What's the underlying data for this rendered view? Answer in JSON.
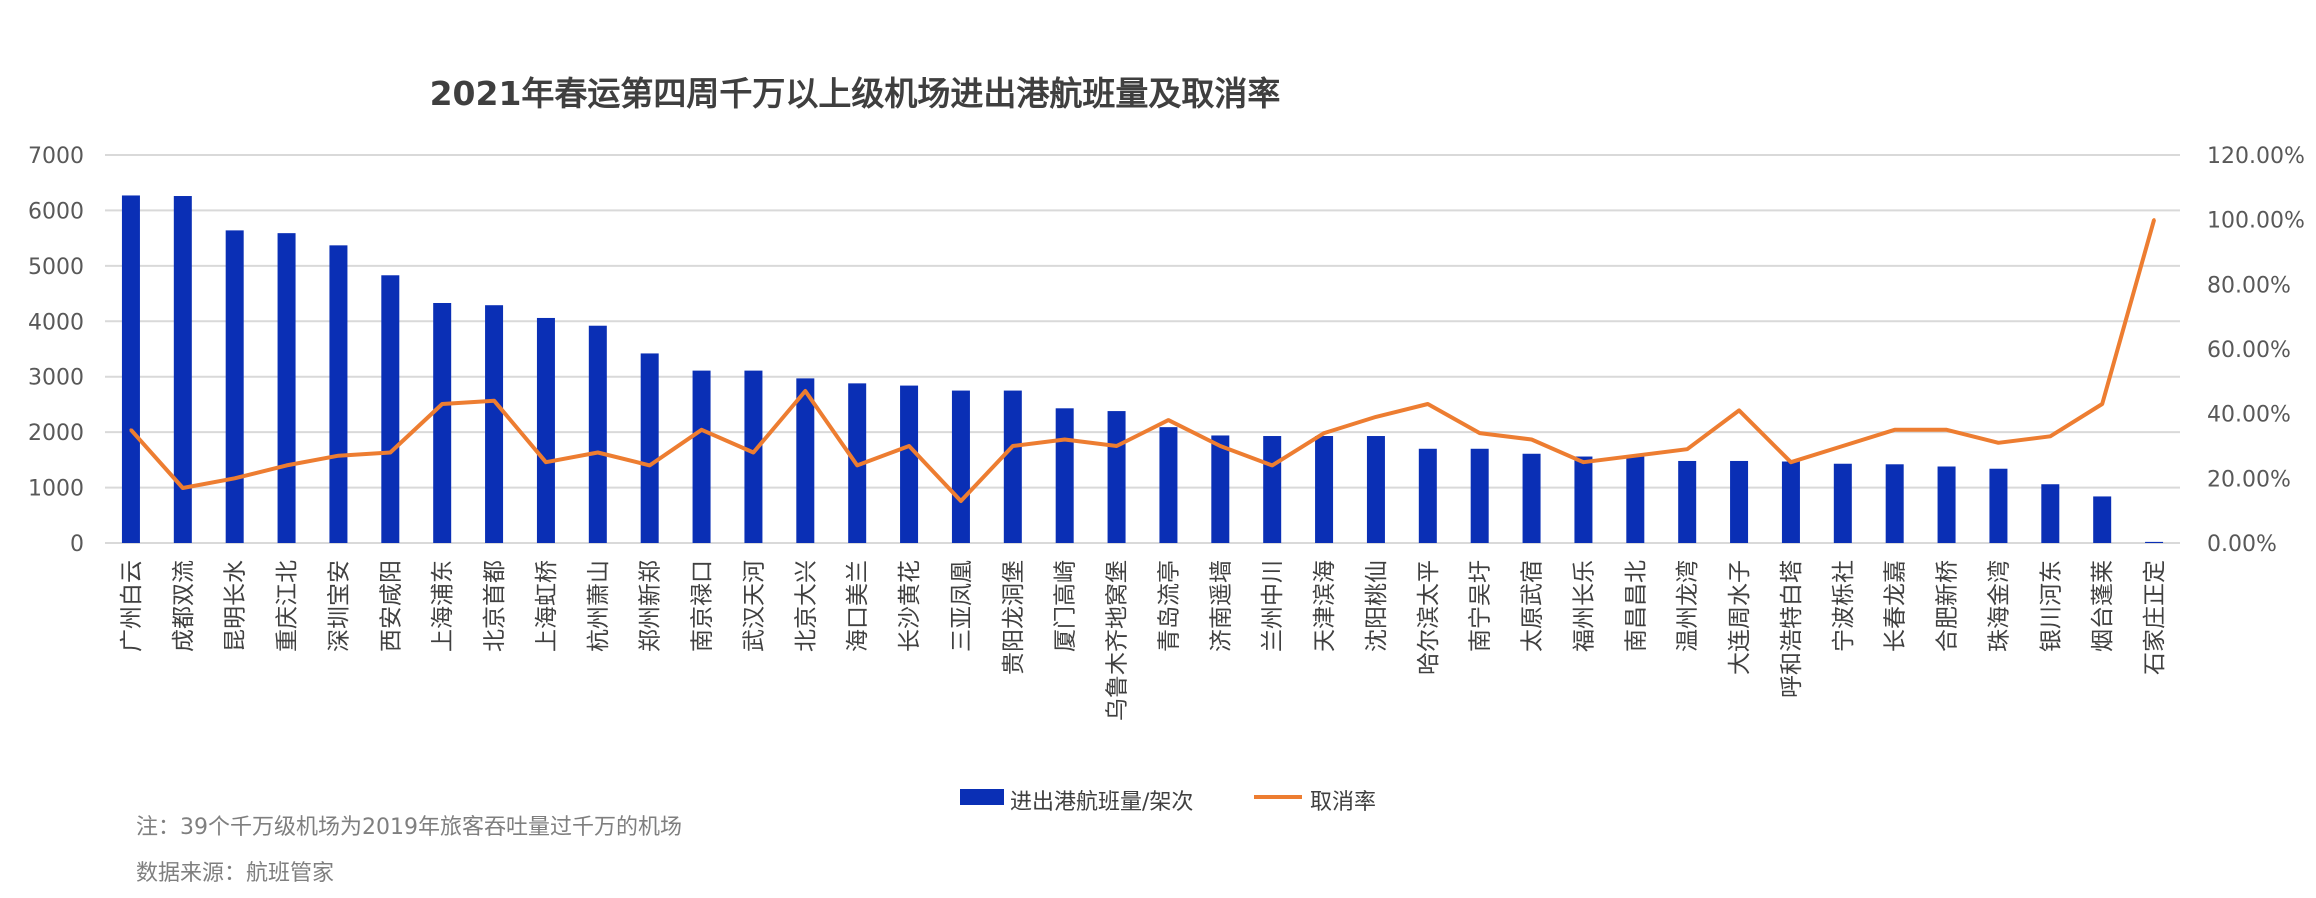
{
  "chart_data": {
    "type": "bar",
    "title": "2021年春运第四周千万以上级机场进出港航班量及取消率",
    "categories": [
      "广州白云",
      "成都双流",
      "昆明长水",
      "重庆江北",
      "深圳宝安",
      "西安咸阳",
      "上海浦东",
      "北京首都",
      "上海虹桥",
      "杭州萧山",
      "郑州新郑",
      "南京禄口",
      "武汉天河",
      "北京大兴",
      "海口美兰",
      "长沙黄花",
      "三亚凤凰",
      "贵阳龙洞堡",
      "厦门高崎",
      "乌鲁木齐地窝堡",
      "青岛流亭",
      "济南遥墙",
      "兰州中川",
      "天津滨海",
      "沈阳桃仙",
      "哈尔滨太平",
      "南宁吴圩",
      "太原武宿",
      "福州长乐",
      "南昌昌北",
      "温州龙湾",
      "大连周水子",
      "呼和浩特白塔",
      "宁波栎社",
      "长春龙嘉",
      "合肥新桥",
      "珠海金湾",
      "银川河东",
      "烟台蓬莱",
      "石家庄正定"
    ],
    "series": [
      {
        "name": "进出港航班量/架次",
        "axis": "left",
        "kind": "bar",
        "color": "#0a2fb5",
        "values": [
          6270,
          6260,
          5640,
          5590,
          5370,
          4830,
          4330,
          4290,
          4060,
          3920,
          3420,
          3110,
          3110,
          2970,
          2880,
          2840,
          2750,
          2750,
          2430,
          2380,
          2090,
          1940,
          1930,
          1930,
          1930,
          1700,
          1700,
          1610,
          1560,
          1560,
          1480,
          1480,
          1470,
          1430,
          1420,
          1380,
          1340,
          1060,
          840,
          20
        ]
      },
      {
        "name": "取消率",
        "axis": "right",
        "kind": "line",
        "color": "#ed7d31",
        "values": [
          0.35,
          0.17,
          0.2,
          0.24,
          0.27,
          0.28,
          0.43,
          0.44,
          0.25,
          0.28,
          0.24,
          0.35,
          0.28,
          0.47,
          0.24,
          0.3,
          0.13,
          0.3,
          0.32,
          0.3,
          0.38,
          0.3,
          0.24,
          0.34,
          0.39,
          0.43,
          0.34,
          0.32,
          0.25,
          0.27,
          0.29,
          0.41,
          0.25,
          0.3,
          0.35,
          0.35,
          0.31,
          0.33,
          0.43,
          1.0
        ]
      }
    ],
    "y_left": {
      "min": 0,
      "max": 7000,
      "ticks": [
        "0",
        "1000",
        "2000",
        "3000",
        "4000",
        "5000",
        "6000",
        "7000"
      ]
    },
    "y_right": {
      "min": 0,
      "max": 1.2,
      "ticks": [
        "0.00%",
        "20.00%",
        "40.00%",
        "60.00%",
        "80.00%",
        "100.00%",
        "120.00%"
      ]
    },
    "grid": true,
    "legend_position": "bottom"
  },
  "notes": {
    "line1": "注：39个千万级机场为2019年旅客吞吐量过千万的机场",
    "line2": "数据来源：航班管家"
  }
}
